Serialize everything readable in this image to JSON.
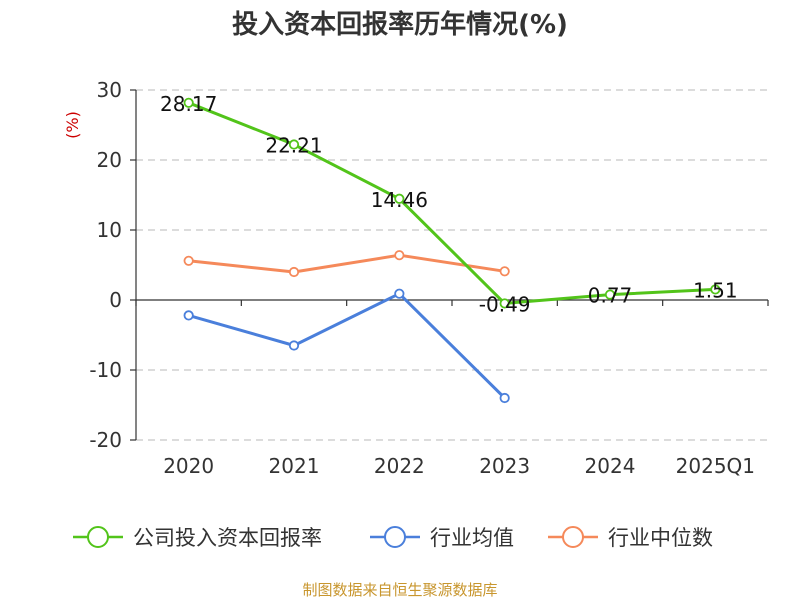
{
  "chart_data": {
    "type": "line",
    "title": "投入资本回报率历年情况(%)",
    "ylabel": "(%)",
    "xlabel": "",
    "categories": [
      "2020",
      "2021",
      "2022",
      "2023",
      "2024",
      "2025Q1"
    ],
    "ylim": [
      -20,
      30
    ],
    "yticks": [
      30,
      20,
      10,
      0,
      -10,
      -20
    ],
    "grid": true,
    "legend_position": "bottom",
    "series": [
      {
        "name": "公司投入资本回报率",
        "color": "#52c41a",
        "values": [
          28.17,
          22.21,
          14.46,
          -0.49,
          0.77,
          1.51
        ],
        "labels": [
          "28.17",
          "22.21",
          "14.46",
          "-0.49",
          "0.77",
          "1.51"
        ]
      },
      {
        "name": "行业均值",
        "color": "#4a7fdb",
        "values": [
          -2.2,
          -6.5,
          0.9,
          -14.0,
          null,
          null
        ]
      },
      {
        "name": "行业中位数",
        "color": "#f5895a",
        "values": [
          5.6,
          4.0,
          6.4,
          4.1,
          null,
          null
        ]
      }
    ]
  },
  "footer": {
    "source": "制图数据来自恒生聚源数据库"
  }
}
